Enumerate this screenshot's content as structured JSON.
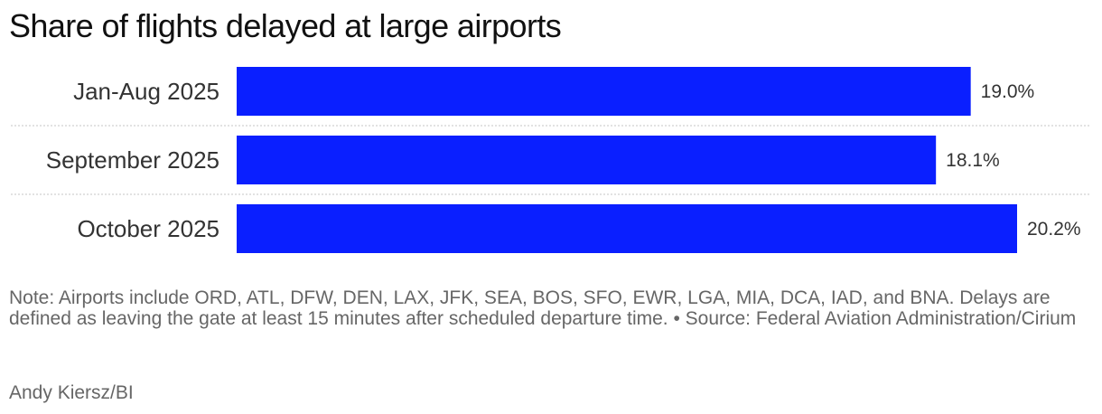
{
  "title": "Share of flights delayed at large airports",
  "chart_data": {
    "type": "bar",
    "orientation": "horizontal",
    "categories": [
      "Jan-Aug 2025",
      "September 2025",
      "October 2025"
    ],
    "values": [
      19.0,
      18.1,
      20.2
    ],
    "value_labels": [
      "19.0%",
      "18.1%",
      "20.2%"
    ],
    "title": "Share of flights delayed at large airports",
    "xlabel": "",
    "ylabel": "",
    "xlim": [
      0,
      20.2
    ],
    "grid": false,
    "bar_color": "#0a1fff"
  },
  "note": "Note: Airports include ORD, ATL, DFW, DEN, LAX, JFK, SEA, BOS, SFO, EWR, LGA, MIA, DCA, IAD, and BNA. Delays are defined as leaving the gate at least 15 minutes after scheduled departure time. • Source: Federal Aviation Administration/Cirium",
  "credit": "Andy Kiersz/BI"
}
